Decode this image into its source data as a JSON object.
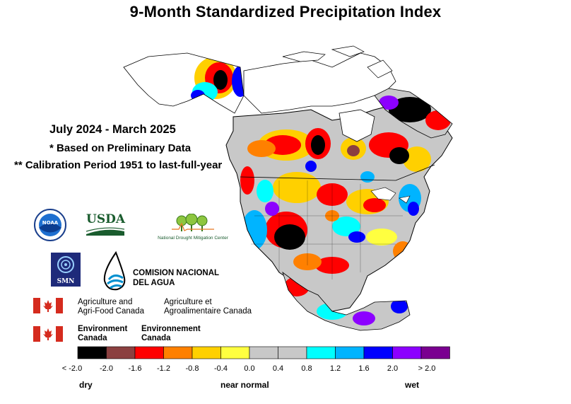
{
  "title": "9-Month Standardized Precipitation Index",
  "info": {
    "period": "July 2024 - March 2025",
    "note1": "* Based on Preliminary Data",
    "note2": "** Calibration Period 1951 to last-full-year"
  },
  "logos": {
    "noaa": "NOAA",
    "usda": "USDA",
    "ndmc": "National Drought Mitigation Center",
    "smn": "SMN",
    "conagua_line1": "COMISION NACIONAL",
    "conagua_line2": "DEL AGUA",
    "aafc_en_line1": "Agriculture and",
    "aafc_en_line2": "Agri-Food Canada",
    "aafc_fr_line1": "Agriculture et",
    "aafc_fr_line2": "Agroalimentaire Canada",
    "ec_en_line1": "Environment",
    "ec_en_line2": "Canada",
    "ec_fr_line1": "Environnement",
    "ec_fr_line2": "Canada"
  },
  "legend": {
    "colors": [
      "#000000",
      "#8b4040",
      "#ff0000",
      "#ff8000",
      "#ffd000",
      "#ffff40",
      "#c8c8c8",
      "#c8c8c8",
      "#00ffff",
      "#00b4ff",
      "#0000ff",
      "#8c00ff",
      "#7a0090"
    ],
    "ticks": [
      "< -2.0",
      "-2.0",
      "-1.6",
      "-1.2",
      "-0.8",
      "-0.4",
      "0.0",
      "0.4",
      "0.8",
      "1.2",
      "1.6",
      "2.0",
      "> 2.0"
    ],
    "dry": "dry",
    "near_normal": "near normal",
    "wet": "wet"
  }
}
